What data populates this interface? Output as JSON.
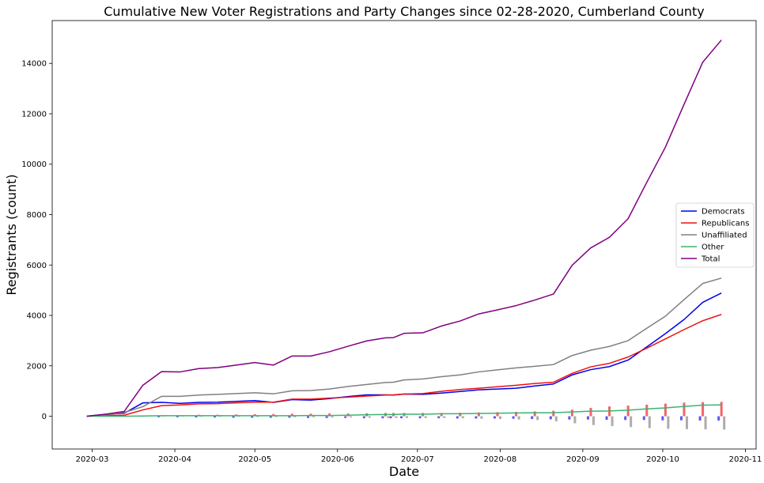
{
  "chart_data": {
    "type": "line",
    "title": "Cumulative New Voter Registrations and Party Changes since 02-28-2020, Cumberland County",
    "xlabel": "Date",
    "ylabel": "Registrants (count)",
    "xlim": [
      "2020-02-15",
      "2020-11-05"
    ],
    "ylim": [
      -1300,
      15700
    ],
    "x_ticks": [
      "2020-03",
      "2020-04",
      "2020-05",
      "2020-06",
      "2020-07",
      "2020-08",
      "2020-09",
      "2020-10",
      "2020-11"
    ],
    "y_ticks": [
      0,
      2000,
      4000,
      6000,
      8000,
      10000,
      12000,
      14000
    ],
    "legend_position": "center-right",
    "x": [
      "2020-02-28",
      "2020-03-06",
      "2020-03-13",
      "2020-03-20",
      "2020-03-27",
      "2020-04-03",
      "2020-04-10",
      "2020-04-17",
      "2020-04-24",
      "2020-05-01",
      "2020-05-08",
      "2020-05-15",
      "2020-05-22",
      "2020-05-29",
      "2020-06-05",
      "2020-06-12",
      "2020-06-19",
      "2020-06-22",
      "2020-06-26",
      "2020-07-03",
      "2020-07-10",
      "2020-07-17",
      "2020-07-24",
      "2020-07-31",
      "2020-08-07",
      "2020-08-14",
      "2020-08-21",
      "2020-08-28",
      "2020-09-04",
      "2020-09-11",
      "2020-09-18",
      "2020-09-25",
      "2020-10-02",
      "2020-10-09",
      "2020-10-16",
      "2020-10-23"
    ],
    "series": [
      {
        "name": "Democrats",
        "color": "#0000ee",
        "values": [
          0,
          80,
          120,
          530,
          550,
          510,
          550,
          560,
          590,
          620,
          550,
          660,
          640,
          700,
          780,
          850,
          850,
          840,
          880,
          870,
          920,
          980,
          1050,
          1080,
          1110,
          1200,
          1280,
          1640,
          1850,
          1970,
          2230,
          2750,
          3280,
          3840,
          4520,
          4890
        ]
      },
      {
        "name": "Republicans",
        "color": "#ee1111",
        "values": [
          0,
          30,
          40,
          250,
          420,
          450,
          490,
          500,
          530,
          560,
          560,
          680,
          680,
          720,
          760,
          800,
          840,
          850,
          880,
          900,
          990,
          1060,
          1110,
          1170,
          1230,
          1300,
          1350,
          1700,
          1960,
          2100,
          2350,
          2700,
          3070,
          3440,
          3790,
          4040
        ]
      },
      {
        "name": "Unaffiliated",
        "color": "#808080",
        "values": [
          0,
          50,
          150,
          380,
          790,
          790,
          840,
          870,
          900,
          930,
          890,
          1010,
          1020,
          1080,
          1180,
          1260,
          1340,
          1350,
          1440,
          1480,
          1570,
          1640,
          1760,
          1840,
          1920,
          1980,
          2050,
          2410,
          2620,
          2770,
          3000,
          3490,
          3970,
          4630,
          5270,
          5480
        ]
      },
      {
        "name": "Other",
        "color": "#3cb371",
        "values": [
          0,
          0,
          0,
          10,
          20,
          20,
          20,
          20,
          20,
          20,
          20,
          20,
          30,
          30,
          40,
          60,
          70,
          70,
          80,
          80,
          100,
          100,
          110,
          120,
          130,
          140,
          140,
          170,
          200,
          210,
          240,
          290,
          330,
          390,
          440,
          450
        ]
      },
      {
        "name": "Total",
        "color": "#800080",
        "values": [
          0,
          80,
          190,
          1230,
          1770,
          1760,
          1890,
          1930,
          2030,
          2130,
          2030,
          2390,
          2390,
          2560,
          2780,
          2990,
          3110,
          3120,
          3290,
          3310,
          3580,
          3780,
          4060,
          4220,
          4390,
          4610,
          4850,
          5990,
          6680,
          7100,
          7840,
          9280,
          10680,
          12380,
          14050,
          14930
        ]
      }
    ],
    "bars": [
      {
        "name": "Democrats",
        "color": "#0000ee",
        "values": [
          0,
          0,
          0,
          0,
          -40,
          -40,
          -50,
          -50,
          -60,
          -60,
          -60,
          -60,
          -70,
          -70,
          -70,
          -80,
          -80,
          -80,
          -80,
          -80,
          -80,
          -90,
          -90,
          -90,
          -100,
          -110,
          -120,
          -130,
          -130,
          -140,
          -150,
          -150,
          -160,
          -160,
          -170,
          -170
        ]
      },
      {
        "name": "Republicans",
        "color": "#ee1111",
        "values": [
          0,
          0,
          0,
          0,
          30,
          40,
          60,
          60,
          70,
          80,
          90,
          100,
          100,
          110,
          110,
          120,
          130,
          130,
          130,
          130,
          130,
          140,
          150,
          160,
          170,
          190,
          220,
          260,
          330,
          390,
          420,
          460,
          500,
          540,
          560,
          570
        ]
      },
      {
        "name": "Unaffiliated",
        "color": "#808080",
        "values": [
          0,
          0,
          0,
          0,
          -10,
          -10,
          -20,
          -20,
          -20,
          -30,
          -30,
          -40,
          -40,
          -50,
          -50,
          -60,
          -70,
          -70,
          -70,
          -70,
          -70,
          -80,
          -100,
          -110,
          -130,
          -150,
          -200,
          -280,
          -350,
          -390,
          -430,
          -470,
          -500,
          -510,
          -520,
          -530
        ]
      }
    ]
  }
}
